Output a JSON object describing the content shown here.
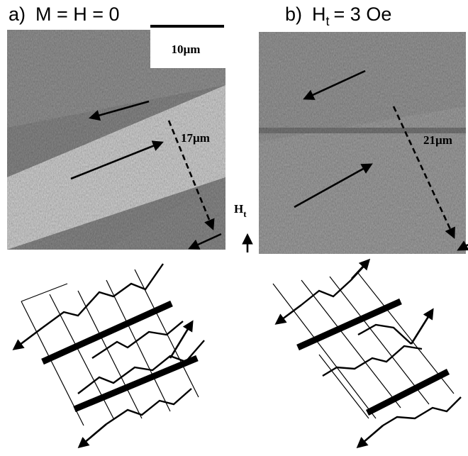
{
  "panels": [
    {
      "label": "a)",
      "title": "M = H = 0",
      "scale_bar": "10µm",
      "distance": "17µm"
    },
    {
      "label": "b)",
      "title_main": "H",
      "title_sub": "t",
      "title_rest": "= 3 Oe",
      "distance": "21µm"
    }
  ],
  "field_label": {
    "main": "H",
    "sub": "t"
  }
}
